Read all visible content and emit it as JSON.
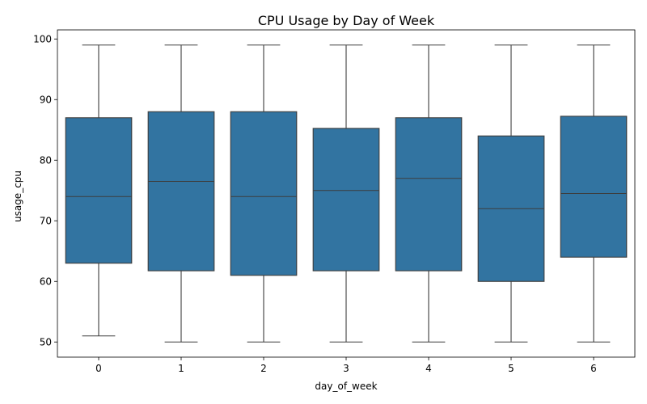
{
  "chart_data": {
    "type": "box",
    "title": "CPU Usage by Day of Week",
    "xlabel": "day_of_week",
    "ylabel": "usage_cpu",
    "categories": [
      "0",
      "1",
      "2",
      "3",
      "4",
      "5",
      "6"
    ],
    "ylim": [
      47.5,
      101.5
    ],
    "yticks": [
      "50",
      "60",
      "70",
      "80",
      "90",
      "100"
    ],
    "grid": false,
    "series_color": "#3274a1",
    "edge_color": "#3d3d3d",
    "boxes": [
      {
        "min": 51,
        "q1": 63.0,
        "median": 74.0,
        "q3": 87.0,
        "max": 99
      },
      {
        "min": 50,
        "q1": 61.75,
        "median": 76.5,
        "q3": 88.0,
        "max": 99
      },
      {
        "min": 50,
        "q1": 61.0,
        "median": 74.0,
        "q3": 88.0,
        "max": 99
      },
      {
        "min": 50,
        "q1": 61.75,
        "median": 75.0,
        "q3": 85.25,
        "max": 99
      },
      {
        "min": 50,
        "q1": 61.75,
        "median": 77.0,
        "q3": 87.0,
        "max": 99
      },
      {
        "min": 50,
        "q1": 60.0,
        "median": 72.0,
        "q3": 84.0,
        "max": 99
      },
      {
        "min": 50,
        "q1": 64.0,
        "median": 74.5,
        "q3": 87.25,
        "max": 99
      }
    ]
  }
}
